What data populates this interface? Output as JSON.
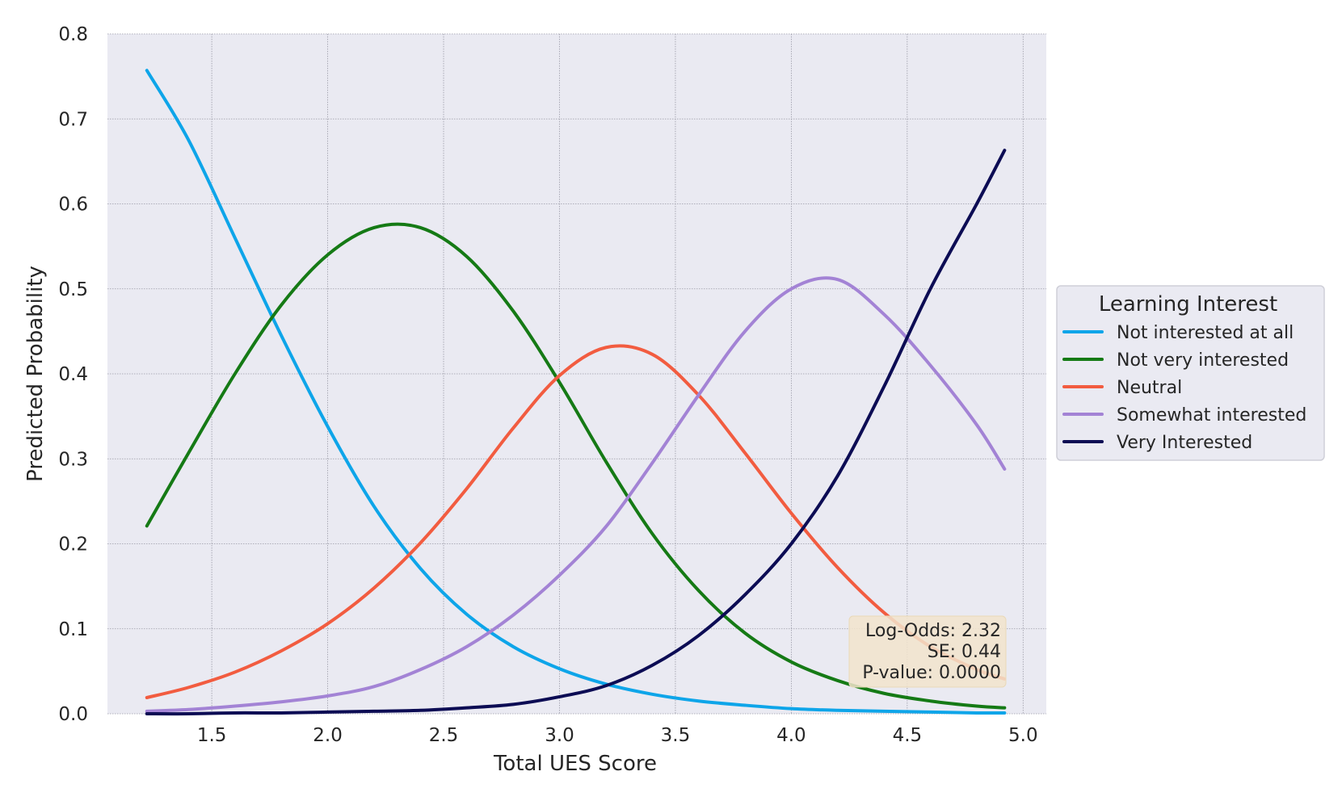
{
  "chart_data": {
    "type": "line",
    "title": "",
    "xlabel": "Total UES Score",
    "ylabel": "Predicted Probability",
    "xlim": [
      1.05,
      5.1
    ],
    "ylim": [
      0.0,
      0.8
    ],
    "x_ticks": [
      1.5,
      2.0,
      2.5,
      3.0,
      3.5,
      4.0,
      4.5,
      5.0
    ],
    "x_tick_labels": [
      "1.5",
      "2.0",
      "2.5",
      "3.0",
      "3.5",
      "4.0",
      "4.5",
      "5.0"
    ],
    "y_ticks": [
      0.0,
      0.1,
      0.2,
      0.3,
      0.4,
      0.5,
      0.6,
      0.7,
      0.8
    ],
    "y_tick_labels": [
      "0.0",
      "0.1",
      "0.2",
      "0.3",
      "0.4",
      "0.5",
      "0.6",
      "0.7",
      "0.8"
    ],
    "grid": true,
    "legend": {
      "title": "Learning Interest",
      "placement": "center-right-outside"
    },
    "x": [
      1.22,
      1.4,
      1.6,
      1.8,
      2.0,
      2.2,
      2.4,
      2.6,
      2.8,
      3.0,
      3.2,
      3.4,
      3.6,
      3.8,
      4.0,
      4.2,
      4.4,
      4.6,
      4.8,
      4.92
    ],
    "series": [
      {
        "name": "Not interested at all",
        "color": "#0ea5e9",
        "values": [
          0.757,
          0.675,
          0.56,
          0.445,
          0.338,
          0.244,
          0.171,
          0.117,
          0.079,
          0.053,
          0.035,
          0.023,
          0.015,
          0.01,
          0.006,
          0.004,
          0.003,
          0.002,
          0.001,
          0.001
        ]
      },
      {
        "name": "Not very interested",
        "color": "#157a15",
        "values": [
          0.221,
          0.307,
          0.4,
          0.481,
          0.54,
          0.572,
          0.572,
          0.538,
          0.474,
          0.39,
          0.297,
          0.212,
          0.145,
          0.095,
          0.061,
          0.039,
          0.024,
          0.015,
          0.009,
          0.007
        ]
      },
      {
        "name": "Neutral",
        "color": "#f25c40",
        "values": [
          0.019,
          0.031,
          0.049,
          0.074,
          0.106,
          0.148,
          0.201,
          0.265,
          0.336,
          0.398,
          0.431,
          0.423,
          0.375,
          0.307,
          0.236,
          0.172,
          0.119,
          0.079,
          0.052,
          0.041
        ]
      },
      {
        "name": "Somewhat interested",
        "color": "#a383d5",
        "values": [
          0.003,
          0.005,
          0.009,
          0.014,
          0.021,
          0.032,
          0.052,
          0.079,
          0.116,
          0.163,
          0.22,
          0.295,
          0.375,
          0.45,
          0.5,
          0.511,
          0.47,
          0.41,
          0.34,
          0.288
        ]
      },
      {
        "name": "Very Interested",
        "color": "#0c0c54",
        "values": [
          0.0,
          0.0,
          0.001,
          0.001,
          0.002,
          0.003,
          0.004,
          0.007,
          0.011,
          0.02,
          0.033,
          0.057,
          0.092,
          0.14,
          0.2,
          0.28,
          0.385,
          0.5,
          0.6,
          0.663
        ]
      }
    ],
    "annotation": {
      "lines": [
        "Log-Odds: 2.32",
        "SE: 0.44",
        "P-value: 0.0000"
      ],
      "placement": "bottom-right"
    },
    "plot_background": "#eaeaf2",
    "annotation_background": "#f2e4cc"
  }
}
